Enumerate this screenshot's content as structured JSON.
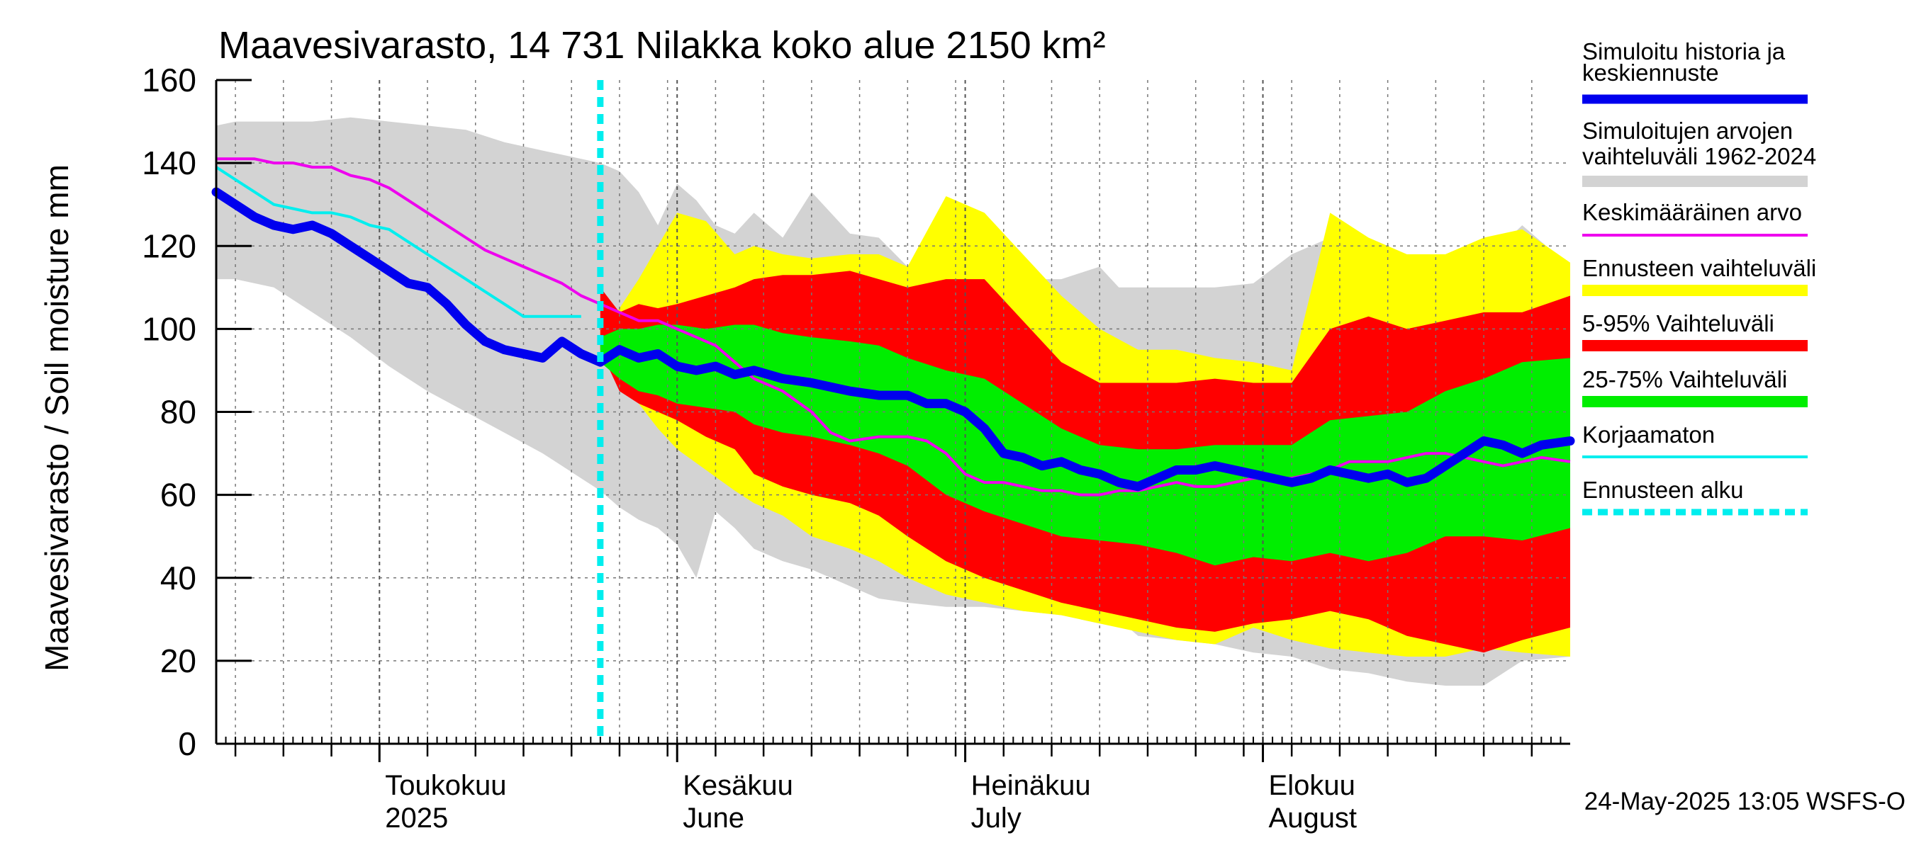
{
  "chart_data": {
    "type": "area",
    "title": "Maavesivarasto, 14 731 Nilakka koko alue 2150 km²",
    "ylabel": "Maavesivarasto / Soil moisture   mm",
    "xlabel": "",
    "ylim": [
      0,
      160
    ],
    "yticks": [
      0,
      20,
      40,
      60,
      80,
      100,
      120,
      140,
      160
    ],
    "x_unit": "day of year (2025)",
    "xlim": [
      104,
      245
    ],
    "forecast_start_day": 144,
    "month_labels": [
      {
        "day": 121,
        "line1": "Toukokuu",
        "line2": "2025"
      },
      {
        "day": 152,
        "line1": "Kesäkuu",
        "line2": "June"
      },
      {
        "day": 182,
        "line1": "Heinäkuu",
        "line2": "July"
      },
      {
        "day": 213,
        "line1": "Elokuu",
        "line2": "August"
      }
    ],
    "footer": "24-May-2025 13:05 WSFS-O",
    "legend": [
      {
        "label": "Simuloitu historia ja keskiennuste",
        "lines": [
          "Simuloitu historia ja",
          "keskiennuste"
        ],
        "color": "#0000ee",
        "style": "thick"
      },
      {
        "label": "Simuloitujen arvojen vaihteluväli 1962-2024",
        "lines": [
          "Simuloitujen arvojen",
          "vaihteluväli 1962-2024"
        ],
        "color": "#d3d3d3",
        "style": "band"
      },
      {
        "label": "Keskimääräinen arvo",
        "lines": [
          "Keskimääräinen arvo"
        ],
        "color": "#ee00ee",
        "style": "thin"
      },
      {
        "label": "Ennusteen vaihteluväli",
        "lines": [
          "Ennusteen vaihteluväli"
        ],
        "color": "#ffff00",
        "style": "band"
      },
      {
        "label": "5-95% Vaihteluväli",
        "lines": [
          "5-95% Vaihteluväli"
        ],
        "color": "#ff0000",
        "style": "band"
      },
      {
        "label": "25-75% Vaihteluväli",
        "lines": [
          "25-75% Vaihteluväli"
        ],
        "color": "#00ee00",
        "style": "band"
      },
      {
        "label": "Korjaamaton",
        "lines": [
          "Korjaamaton"
        ],
        "color": "#00eeee",
        "style": "thin"
      },
      {
        "label": "Ennusteen alku",
        "lines": [
          "Ennusteen alku"
        ],
        "color": "#00eeee",
        "style": "dashed"
      }
    ],
    "bands": {
      "history_range": {
        "x": [
          104,
          106,
          110,
          114,
          118,
          122,
          126,
          130,
          134,
          138,
          140,
          142,
          144,
          146,
          148,
          150,
          152,
          154,
          156,
          158,
          160,
          163,
          166,
          170,
          173,
          176,
          180,
          184,
          188,
          192,
          196,
          198,
          200,
          204,
          208,
          212,
          216,
          220,
          224,
          228,
          232,
          236,
          240,
          245
        ],
        "low": [
          112,
          112,
          110,
          104,
          98,
          91,
          85,
          80,
          75,
          70,
          67,
          64,
          61,
          57,
          54,
          52,
          48,
          40,
          56,
          52,
          47,
          44,
          42,
          38,
          35,
          34,
          33,
          33,
          32,
          31,
          29,
          30,
          26,
          25,
          24,
          22,
          21,
          18,
          17,
          15,
          14,
          14,
          20,
          21
        ],
        "high": [
          149,
          150,
          150,
          150,
          151,
          150,
          149,
          148,
          145,
          143,
          142,
          141,
          140,
          138,
          133,
          125,
          135,
          131,
          125,
          123,
          128,
          122,
          133,
          123,
          122,
          115,
          113,
          113,
          112,
          112,
          115,
          110,
          110,
          110,
          110,
          111,
          118,
          122,
          120,
          118,
          116,
          116,
          125,
          115
        ]
      },
      "forecast_range": {
        "x": [
          144,
          146,
          148,
          150,
          152,
          155,
          158,
          160,
          163,
          166,
          170,
          173,
          176,
          180,
          184,
          188,
          192,
          196,
          200,
          204,
          208,
          212,
          216,
          220,
          224,
          228,
          232,
          236,
          240,
          245
        ],
        "low": [
          96,
          88,
          82,
          76,
          71,
          66,
          61,
          58,
          55,
          50,
          47,
          44,
          40,
          36,
          34,
          32,
          31,
          29,
          27,
          25,
          24,
          28,
          25,
          23,
          22,
          21,
          21,
          23,
          22,
          21
        ],
        "high": [
          100,
          105,
          112,
          120,
          128,
          126,
          118,
          120,
          118,
          117,
          118,
          118,
          115,
          132,
          128,
          118,
          108,
          100,
          95,
          95,
          93,
          92,
          90,
          128,
          122,
          118,
          118,
          122,
          124,
          116
        ]
      },
      "p5_95": {
        "x": [
          144,
          146,
          148,
          150,
          152,
          155,
          158,
          160,
          163,
          166,
          170,
          173,
          176,
          180,
          184,
          188,
          192,
          196,
          200,
          204,
          208,
          212,
          216,
          220,
          224,
          228,
          232,
          236,
          240,
          245
        ],
        "low": [
          95,
          85,
          82,
          80,
          78,
          74,
          71,
          65,
          62,
          60,
          58,
          55,
          50,
          44,
          40,
          37,
          34,
          32,
          30,
          28,
          27,
          29,
          30,
          32,
          30,
          26,
          24,
          22,
          25,
          28
        ],
        "high": [
          110,
          104,
          106,
          105,
          106,
          108,
          110,
          112,
          113,
          113,
          114,
          112,
          110,
          112,
          112,
          102,
          92,
          87,
          87,
          87,
          88,
          87,
          87,
          100,
          103,
          100,
          102,
          104,
          104,
          108
        ]
      },
      "p25_75": {
        "x": [
          144,
          146,
          148,
          150,
          152,
          155,
          158,
          160,
          163,
          166,
          170,
          173,
          176,
          180,
          184,
          188,
          192,
          196,
          200,
          204,
          208,
          212,
          216,
          220,
          224,
          228,
          232,
          236,
          240,
          245
        ],
        "low": [
          92,
          88,
          85,
          84,
          82,
          81,
          80,
          77,
          75,
          74,
          72,
          70,
          67,
          60,
          56,
          53,
          50,
          49,
          48,
          46,
          43,
          45,
          44,
          46,
          44,
          46,
          50,
          50,
          49,
          52
        ],
        "high": [
          98,
          100,
          100,
          101,
          101,
          100,
          101,
          101,
          99,
          98,
          97,
          96,
          93,
          90,
          88,
          82,
          76,
          72,
          71,
          71,
          72,
          72,
          72,
          78,
          79,
          80,
          85,
          88,
          92,
          93
        ]
      }
    },
    "series": [
      {
        "name": "Simuloitu historia ja keskiennuste",
        "x": [
          104,
          106,
          108,
          110,
          112,
          114,
          116,
          118,
          120,
          122,
          124,
          126,
          128,
          130,
          132,
          134,
          136,
          138,
          140,
          142,
          144,
          146,
          148,
          150,
          152,
          154,
          156,
          158,
          160,
          163,
          166,
          168,
          170,
          173,
          176,
          178,
          180,
          182,
          184,
          186,
          188,
          190,
          192,
          194,
          196,
          198,
          200,
          202,
          204,
          206,
          208,
          210,
          212,
          214,
          216,
          218,
          220,
          222,
          224,
          226,
          228,
          230,
          232,
          234,
          236,
          238,
          240,
          242,
          245
        ],
        "y": [
          133,
          130,
          127,
          125,
          124,
          125,
          123,
          120,
          117,
          114,
          111,
          110,
          106,
          101,
          97,
          95,
          94,
          93,
          97,
          94,
          92,
          95,
          93,
          94,
          91,
          90,
          91,
          89,
          90,
          88,
          87,
          86,
          85,
          84,
          84,
          82,
          82,
          80,
          76,
          70,
          69,
          67,
          68,
          66,
          65,
          63,
          62,
          64,
          66,
          66,
          67,
          66,
          65,
          64,
          63,
          64,
          66,
          65,
          64,
          65,
          63,
          64,
          67,
          70,
          73,
          72,
          70,
          72,
          73
        ]
      },
      {
        "name": "Keskimääräinen arvo",
        "x": [
          104,
          106,
          108,
          110,
          112,
          114,
          116,
          118,
          120,
          122,
          124,
          126,
          128,
          130,
          132,
          134,
          136,
          138,
          140,
          142,
          144,
          146,
          148,
          150,
          152,
          154,
          156,
          158,
          160,
          163,
          166,
          168,
          170,
          173,
          176,
          178,
          180,
          182,
          184,
          186,
          188,
          190,
          192,
          194,
          196,
          198,
          200,
          202,
          204,
          206,
          208,
          210,
          212,
          214,
          216,
          218,
          220,
          222,
          224,
          226,
          228,
          230,
          232,
          234,
          236,
          238,
          240,
          242,
          245
        ],
        "y": [
          141,
          141,
          141,
          140,
          140,
          139,
          139,
          137,
          136,
          134,
          131,
          128,
          125,
          122,
          119,
          117,
          115,
          113,
          111,
          108,
          106,
          104,
          102,
          102,
          100,
          98,
          96,
          92,
          88,
          85,
          80,
          75,
          73,
          74,
          74,
          73,
          70,
          65,
          63,
          63,
          62,
          61,
          61,
          60,
          60,
          61,
          61,
          62,
          63,
          62,
          62,
          63,
          64,
          64,
          64,
          65,
          66,
          68,
          68,
          68,
          69,
          70,
          70,
          69,
          68,
          67,
          68,
          69,
          68
        ]
      },
      {
        "name": "Korjaamaton",
        "x": [
          104,
          106,
          108,
          110,
          112,
          114,
          116,
          118,
          120,
          122,
          124,
          126,
          128,
          130,
          132,
          134,
          136,
          138,
          140,
          142
        ],
        "y": [
          139,
          136,
          133,
          130,
          129,
          128,
          128,
          127,
          125,
          124,
          121,
          118,
          115,
          112,
          109,
          106,
          103,
          103,
          103,
          103
        ]
      }
    ]
  }
}
